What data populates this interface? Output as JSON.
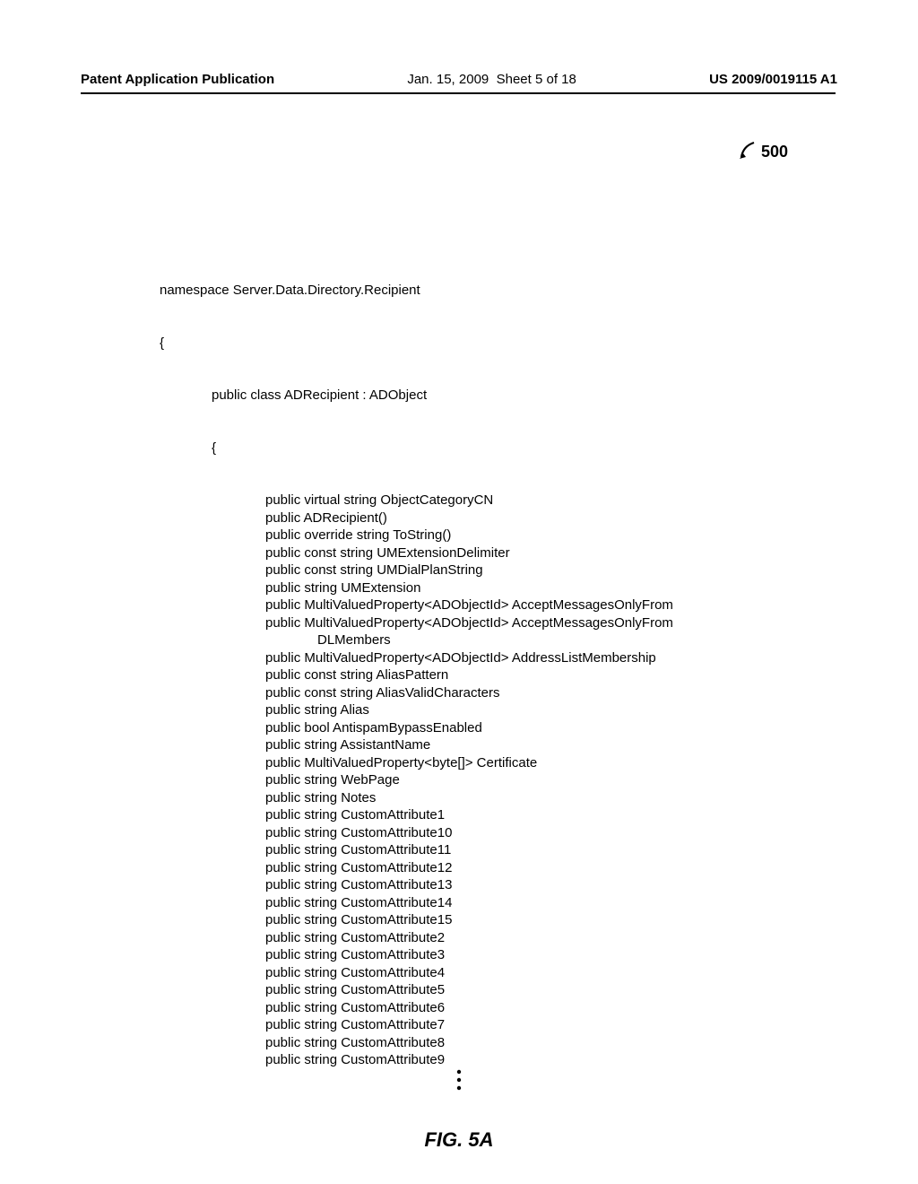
{
  "header": {
    "left": "Patent Application Publication",
    "center_date": "Jan. 15, 2009",
    "center_sheet": "Sheet 5 of 18",
    "right": "US 2009/0019115 A1"
  },
  "reference_number": "500",
  "code": {
    "namespace_decl": "namespace Server.Data.Directory.Recipient",
    "brace_open": "{",
    "class_decl": "public class ADRecipient : ADObject",
    "class_brace_open": "{",
    "members": [
      "public virtual string ObjectCategoryCN",
      "public ADRecipient()",
      "public override string ToString()",
      "public const string UMExtensionDelimiter",
      "public const string UMDialPlanString",
      "public string UMExtension",
      "public MultiValuedProperty<ADObjectId> AcceptMessagesOnlyFrom",
      "public MultiValuedProperty<ADObjectId> AcceptMessagesOnlyFrom",
      "DLMembers",
      "public MultiValuedProperty<ADObjectId> AddressListMembership",
      "public const string AliasPattern",
      "public const string AliasValidCharacters",
      "public string Alias",
      "public bool AntispamBypassEnabled",
      "public string AssistantName",
      "public MultiValuedProperty<byte[]> Certificate",
      "public string WebPage",
      "public string Notes",
      "public string CustomAttribute1",
      "public string CustomAttribute10",
      "public string CustomAttribute11",
      "public string CustomAttribute12",
      "public string CustomAttribute13",
      "public string CustomAttribute14",
      "public string CustomAttribute15",
      "public string CustomAttribute2",
      "public string CustomAttribute3",
      "public string CustomAttribute4",
      "public string CustomAttribute5",
      "public string CustomAttribute6",
      "public string CustomAttribute7",
      "public string CustomAttribute8",
      "public string CustomAttribute9"
    ],
    "member_indent_indexes": [
      8
    ]
  },
  "figure_label": "FIG. 5A"
}
